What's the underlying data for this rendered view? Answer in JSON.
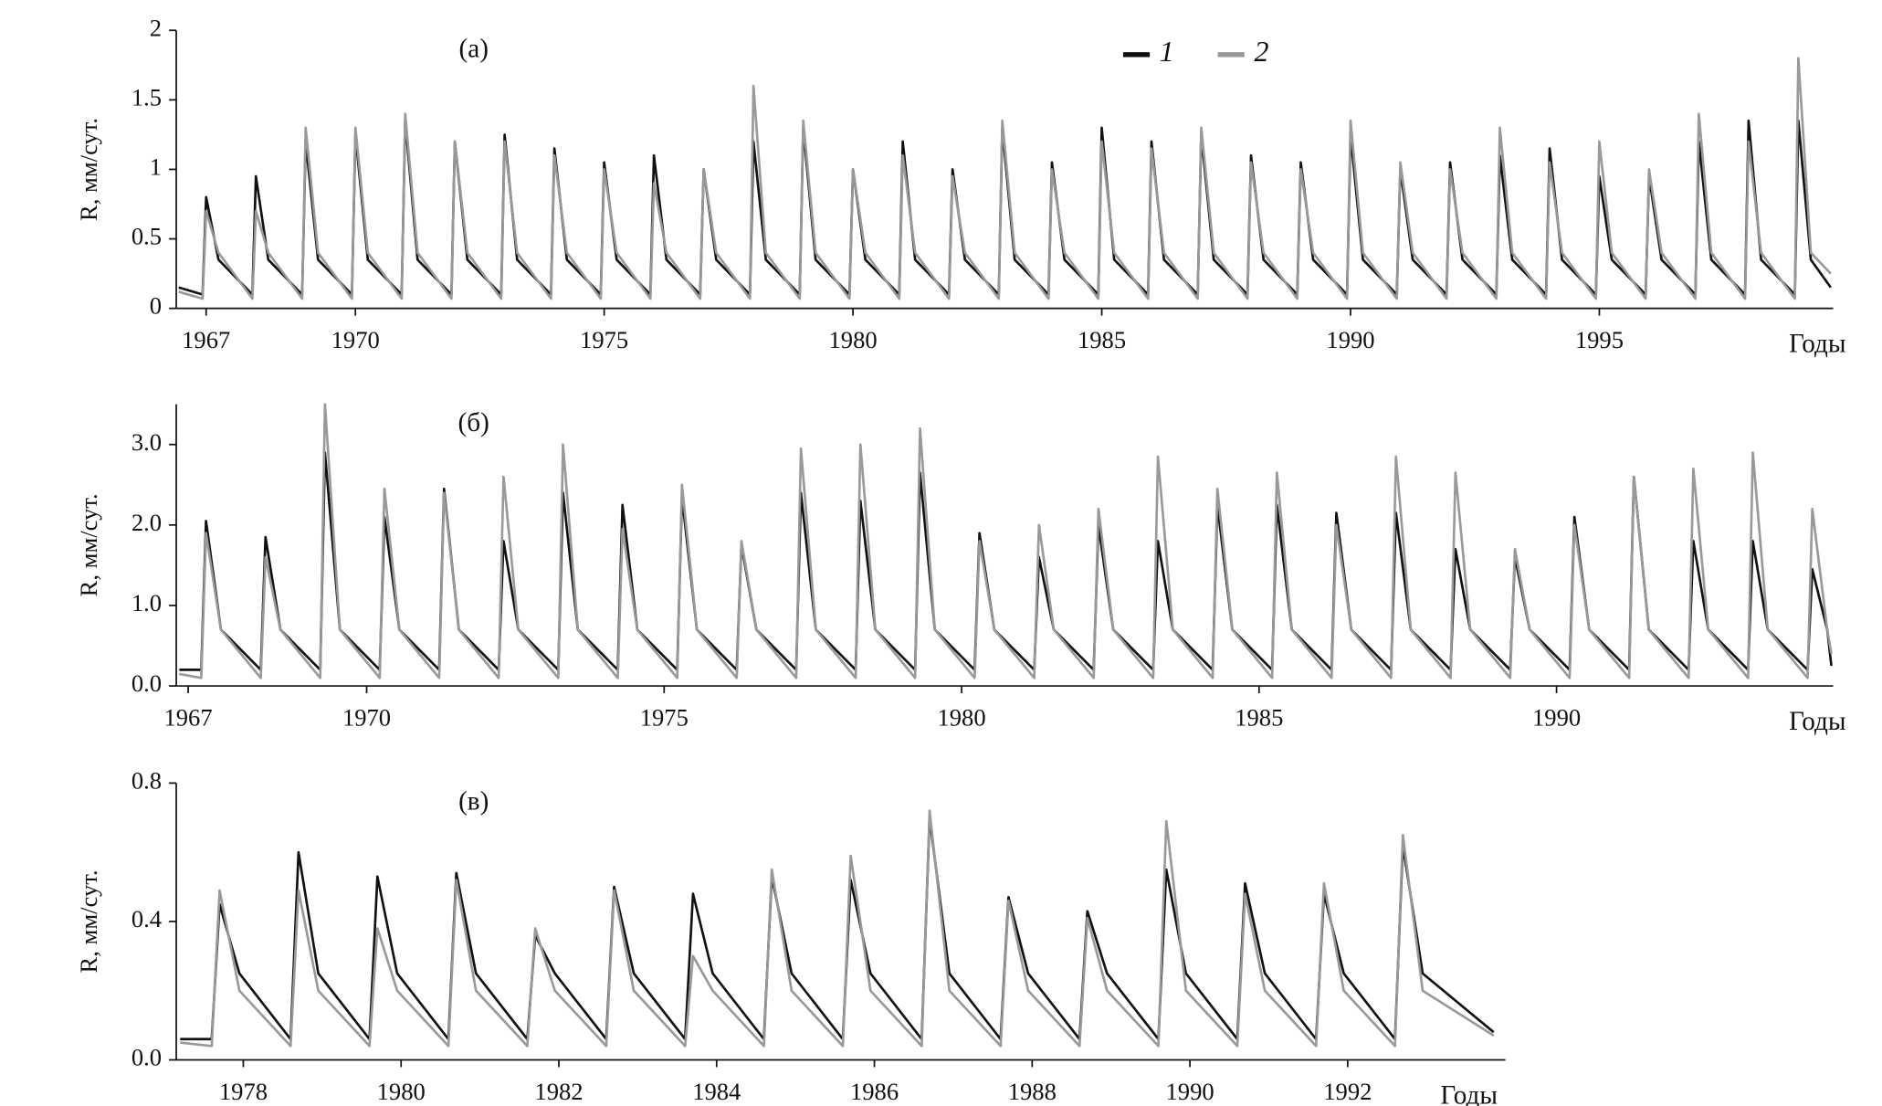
{
  "chart_data": [
    {
      "type": "line",
      "title": "(а)",
      "x_label": "Годы",
      "y_label": "R, мм/сут.",
      "xlim": [
        1966.4,
        1999.7
      ],
      "ylim": [
        0,
        2
      ],
      "xticks": [
        1967,
        1970,
        1975,
        1980,
        1985,
        1990,
        1995
      ],
      "yticks": [
        0,
        0.5,
        1,
        1.5,
        2
      ],
      "x": [
        1966.45,
        1966.93,
        1967,
        1967.25,
        1967.93,
        1968,
        1968.25,
        1968.93,
        1969,
        1969.25,
        1969.93,
        1970,
        1970.25,
        1970.93,
        1971,
        1971.25,
        1971.93,
        1972,
        1972.25,
        1972.93,
        1973,
        1973.25,
        1973.93,
        1974,
        1974.25,
        1974.93,
        1975,
        1975.25,
        1975.93,
        1976,
        1976.25,
        1976.93,
        1977,
        1977.25,
        1977.93,
        1978,
        1978.25,
        1978.93,
        1979,
        1979.25,
        1979.93,
        1980,
        1980.25,
        1980.93,
        1981,
        1981.25,
        1981.93,
        1982,
        1982.25,
        1982.93,
        1983,
        1983.25,
        1983.93,
        1984,
        1984.25,
        1984.93,
        1985,
        1985.25,
        1985.93,
        1986,
        1986.25,
        1986.93,
        1987,
        1987.25,
        1987.93,
        1988,
        1988.25,
        1988.93,
        1989,
        1989.25,
        1989.93,
        1990,
        1990.25,
        1990.93,
        1991,
        1991.25,
        1991.93,
        1992,
        1992.25,
        1992.93,
        1993,
        1993.25,
        1993.93,
        1994,
        1994.25,
        1994.93,
        1995,
        1995.25,
        1995.93,
        1996,
        1996.25,
        1996.93,
        1997,
        1997.25,
        1997.93,
        1998,
        1998.25,
        1998.93,
        1999,
        1999.25,
        1999.65
      ],
      "series": [
        {
          "name": "1",
          "color": "#111111",
          "values": [
            0.15,
            0.1,
            0.8,
            0.35,
            0.1,
            0.95,
            0.35,
            0.1,
            1.2,
            0.35,
            0.1,
            1.25,
            0.35,
            0.1,
            1.35,
            0.35,
            0.1,
            1.2,
            0.35,
            0.1,
            1.25,
            0.35,
            0.1,
            1.15,
            0.35,
            0.1,
            1.05,
            0.35,
            0.1,
            1.1,
            0.35,
            0.1,
            1.0,
            0.35,
            0.1,
            1.2,
            0.35,
            0.1,
            1.3,
            0.35,
            0.1,
            1.0,
            0.35,
            0.1,
            1.2,
            0.35,
            0.1,
            1.0,
            0.35,
            0.1,
            1.3,
            0.35,
            0.1,
            1.05,
            0.35,
            0.1,
            1.3,
            0.35,
            0.1,
            1.2,
            0.35,
            0.1,
            1.25,
            0.35,
            0.1,
            1.1,
            0.35,
            0.1,
            1.05,
            0.35,
            0.1,
            1.25,
            0.35,
            0.1,
            1.0,
            0.35,
            0.1,
            1.05,
            0.35,
            0.1,
            1.1,
            0.35,
            0.1,
            1.15,
            0.35,
            0.1,
            0.95,
            0.35,
            0.1,
            0.95,
            0.35,
            0.1,
            1.2,
            0.35,
            0.1,
            1.35,
            0.35,
            0.1,
            1.35,
            0.35,
            0.15
          ]
        },
        {
          "name": "2",
          "color": "#999999",
          "values": [
            0.12,
            0.07,
            0.7,
            0.4,
            0.07,
            0.7,
            0.4,
            0.07,
            1.3,
            0.4,
            0.07,
            1.3,
            0.4,
            0.07,
            1.4,
            0.4,
            0.07,
            1.2,
            0.4,
            0.07,
            1.2,
            0.4,
            0.07,
            1.1,
            0.4,
            0.07,
            1.0,
            0.4,
            0.07,
            0.9,
            0.4,
            0.07,
            1.0,
            0.4,
            0.07,
            1.6,
            0.4,
            0.07,
            1.35,
            0.4,
            0.07,
            1.0,
            0.4,
            0.07,
            1.1,
            0.4,
            0.07,
            0.95,
            0.4,
            0.07,
            1.35,
            0.4,
            0.07,
            1.0,
            0.4,
            0.07,
            1.2,
            0.4,
            0.07,
            1.15,
            0.4,
            0.07,
            1.3,
            0.4,
            0.07,
            1.05,
            0.4,
            0.07,
            1.0,
            0.4,
            0.07,
            1.35,
            0.4,
            0.07,
            1.05,
            0.4,
            0.07,
            1.0,
            0.4,
            0.07,
            1.3,
            0.4,
            0.07,
            1.05,
            0.4,
            0.07,
            1.2,
            0.4,
            0.07,
            1.0,
            0.4,
            0.07,
            1.4,
            0.4,
            0.07,
            1.2,
            0.4,
            0.07,
            1.8,
            0.4,
            0.25
          ]
        }
      ]
    },
    {
      "type": "line",
      "title": "(б)",
      "x_label": "Годы",
      "y_label": "R, мм/сут.",
      "xlim": [
        1966.8,
        1994.65
      ],
      "ylim": [
        0,
        3.5
      ],
      "xticks": [
        1967,
        1970,
        1975,
        1980,
        1985,
        1990
      ],
      "yticks": [
        {
          "value": 0,
          "label": "0.0"
        },
        {
          "value": 1,
          "label": "1.0"
        },
        {
          "value": 2,
          "label": "2.0"
        },
        {
          "value": 3,
          "label": "3.0"
        }
      ],
      "x": [
        1966.85,
        1967.22,
        1967.3,
        1967.55,
        1968.22,
        1968.3,
        1968.55,
        1969.22,
        1969.3,
        1969.55,
        1970.22,
        1970.3,
        1970.55,
        1971.22,
        1971.3,
        1971.55,
        1972.22,
        1972.3,
        1972.55,
        1973.22,
        1973.3,
        1973.55,
        1974.22,
        1974.3,
        1974.55,
        1975.22,
        1975.3,
        1975.55,
        1976.22,
        1976.3,
        1976.55,
        1977.22,
        1977.3,
        1977.55,
        1978.22,
        1978.3,
        1978.55,
        1979.22,
        1979.3,
        1979.55,
        1980.22,
        1980.3,
        1980.55,
        1981.22,
        1981.3,
        1981.55,
        1982.22,
        1982.3,
        1982.55,
        1983.22,
        1983.3,
        1983.55,
        1984.22,
        1984.3,
        1984.55,
        1985.22,
        1985.3,
        1985.55,
        1986.22,
        1986.3,
        1986.55,
        1987.22,
        1987.3,
        1987.55,
        1988.22,
        1988.3,
        1988.55,
        1989.22,
        1989.3,
        1989.55,
        1990.22,
        1990.3,
        1990.55,
        1991.22,
        1991.3,
        1991.55,
        1992.22,
        1992.3,
        1992.55,
        1993.22,
        1993.3,
        1993.55,
        1994.22,
        1994.3,
        1994.55,
        1994.62
      ],
      "series": [
        {
          "color": "#111111",
          "values": [
            0.2,
            0.2,
            2.05,
            0.7,
            0.2,
            1.85,
            0.7,
            0.2,
            2.9,
            0.7,
            0.2,
            2.1,
            0.7,
            0.2,
            2.45,
            0.7,
            0.2,
            1.8,
            0.7,
            0.2,
            2.4,
            0.7,
            0.2,
            2.25,
            0.7,
            0.2,
            2.35,
            0.7,
            0.2,
            1.75,
            0.7,
            0.2,
            2.4,
            0.7,
            0.2,
            2.3,
            0.7,
            0.2,
            2.65,
            0.7,
            0.2,
            1.9,
            0.7,
            0.2,
            1.6,
            0.7,
            0.2,
            2.0,
            0.7,
            0.2,
            1.8,
            0.7,
            0.2,
            2.25,
            0.7,
            0.2,
            2.25,
            0.7,
            0.2,
            2.15,
            0.7,
            0.2,
            2.15,
            0.7,
            0.2,
            1.7,
            0.7,
            0.2,
            1.6,
            0.7,
            0.2,
            2.1,
            0.7,
            0.2,
            2.6,
            0.7,
            0.2,
            1.8,
            0.7,
            0.2,
            1.8,
            0.7,
            0.2,
            1.45,
            0.7,
            0.25
          ]
        },
        {
          "color": "#999999",
          "values": [
            0.15,
            0.1,
            1.9,
            0.7,
            0.1,
            1.6,
            0.7,
            0.1,
            3.5,
            0.7,
            0.1,
            2.45,
            0.7,
            0.1,
            2.4,
            0.7,
            0.1,
            2.6,
            0.7,
            0.1,
            3.0,
            0.7,
            0.1,
            1.95,
            0.7,
            0.1,
            2.5,
            0.7,
            0.1,
            1.8,
            0.7,
            0.1,
            2.95,
            0.7,
            0.1,
            3.0,
            0.7,
            0.1,
            3.2,
            0.7,
            0.1,
            1.8,
            0.7,
            0.1,
            2.0,
            0.7,
            0.1,
            2.2,
            0.7,
            0.1,
            2.85,
            0.7,
            0.1,
            2.45,
            0.7,
            0.1,
            2.65,
            0.7,
            0.1,
            2.0,
            0.7,
            0.1,
            2.85,
            0.7,
            0.1,
            2.65,
            0.7,
            0.1,
            1.7,
            0.7,
            0.1,
            2.0,
            0.7,
            0.1,
            2.6,
            0.7,
            0.1,
            2.7,
            0.7,
            0.1,
            2.9,
            0.7,
            0.1,
            2.2,
            0.7,
            0.4
          ]
        }
      ]
    },
    {
      "type": "line",
      "title": "(в)",
      "x_label": "Годы",
      "y_label": "R, мм/сут.",
      "xlim": [
        1977.15,
        1994
      ],
      "ylim": [
        0,
        0.8
      ],
      "xticks": [
        1978,
        1980,
        1982,
        1984,
        1986,
        1988,
        1990,
        1992
      ],
      "yticks": [
        {
          "value": 0,
          "label": "0.0"
        },
        0.4,
        0.8
      ],
      "x": [
        1977.2,
        1977.6,
        1977.7,
        1977.95,
        1978.6,
        1978.7,
        1978.95,
        1979.6,
        1979.7,
        1979.95,
        1980.6,
        1980.7,
        1980.95,
        1981.6,
        1981.7,
        1981.95,
        1982.6,
        1982.7,
        1982.95,
        1983.6,
        1983.7,
        1983.95,
        1984.6,
        1984.7,
        1984.95,
        1985.6,
        1985.7,
        1985.95,
        1986.6,
        1986.7,
        1986.95,
        1987.6,
        1987.7,
        1987.95,
        1988.6,
        1988.7,
        1988.95,
        1989.6,
        1989.7,
        1989.95,
        1990.6,
        1990.7,
        1990.95,
        1991.6,
        1991.7,
        1991.95,
        1992.6,
        1992.7,
        1992.95,
        1993.85
      ],
      "series": [
        {
          "color": "#111111",
          "values": [
            0.06,
            0.06,
            0.45,
            0.25,
            0.06,
            0.6,
            0.25,
            0.06,
            0.53,
            0.25,
            0.06,
            0.54,
            0.25,
            0.06,
            0.36,
            0.25,
            0.06,
            0.5,
            0.25,
            0.06,
            0.48,
            0.25,
            0.06,
            0.53,
            0.25,
            0.06,
            0.52,
            0.25,
            0.06,
            0.7,
            0.25,
            0.06,
            0.47,
            0.25,
            0.06,
            0.43,
            0.25,
            0.06,
            0.55,
            0.25,
            0.06,
            0.51,
            0.25,
            0.06,
            0.48,
            0.25,
            0.06,
            0.62,
            0.25,
            0.08
          ]
        },
        {
          "color": "#999999",
          "values": [
            0.05,
            0.04,
            0.49,
            0.2,
            0.04,
            0.49,
            0.2,
            0.04,
            0.38,
            0.2,
            0.04,
            0.52,
            0.2,
            0.04,
            0.38,
            0.2,
            0.04,
            0.49,
            0.2,
            0.04,
            0.3,
            0.2,
            0.04,
            0.55,
            0.2,
            0.04,
            0.59,
            0.2,
            0.04,
            0.72,
            0.2,
            0.04,
            0.46,
            0.2,
            0.04,
            0.41,
            0.2,
            0.04,
            0.69,
            0.2,
            0.04,
            0.48,
            0.2,
            0.04,
            0.51,
            0.2,
            0.04,
            0.65,
            0.2,
            0.07
          ]
        }
      ]
    }
  ]
}
